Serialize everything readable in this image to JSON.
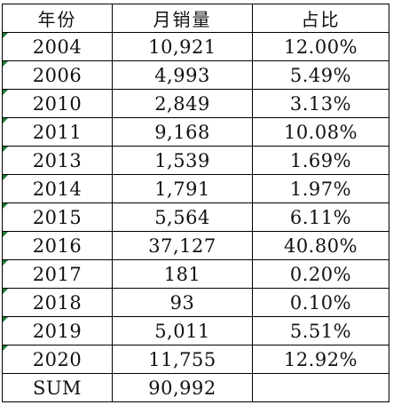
{
  "headers": [
    "年份",
    "月销量",
    "占比"
  ],
  "rows": [
    {
      "year": "2004",
      "sales": "10,921",
      "share": "12.00%"
    },
    {
      "year": "2006",
      "sales": "4,993",
      "share": "5.49%"
    },
    {
      "year": "2010",
      "sales": "2,849",
      "share": "3.13%"
    },
    {
      "year": "2011",
      "sales": "9,168",
      "share": "10.08%"
    },
    {
      "year": "2013",
      "sales": "1,539",
      "share": "1.69%"
    },
    {
      "year": "2014",
      "sales": "1,791",
      "share": "1.97%"
    },
    {
      "year": "2015",
      "sales": "5,564",
      "share": "6.11%"
    },
    {
      "year": "2016",
      "sales": "37,127",
      "share": "40.80%"
    },
    {
      "year": "2017",
      "sales": "181",
      "share": "0.20%"
    },
    {
      "year": "2018",
      "sales": "93",
      "share": "0.10%"
    },
    {
      "year": "2019",
      "sales": "5,011",
      "share": "5.51%"
    },
    {
      "year": "2020",
      "sales": "11,755",
      "share": "12.92%"
    }
  ],
  "total": {
    "label": "SUM",
    "sales": "90,992",
    "share": ""
  },
  "colors": {
    "grid": "#000000",
    "text_indicator": "#1e7b34"
  }
}
